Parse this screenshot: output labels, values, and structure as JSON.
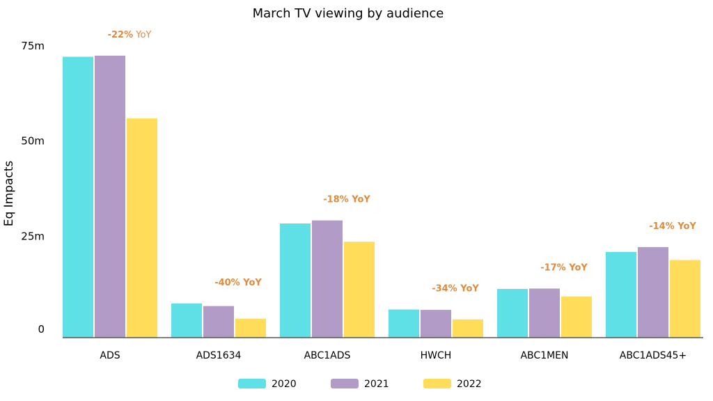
{
  "chart_data": {
    "type": "bar",
    "title": "March TV viewing by audience",
    "xlabel": "",
    "ylabel": "Eq Impacts",
    "ylim": [
      0,
      75
    ],
    "y_ticks": [
      {
        "value": 0,
        "label": "0"
      },
      {
        "value": 25,
        "label": "25m"
      },
      {
        "value": 50,
        "label": "50m"
      },
      {
        "value": 75,
        "label": "75m"
      }
    ],
    "grid": false,
    "legend_position": "bottom",
    "categories": [
      "ADS",
      "ADS1634",
      "ABC1ADS",
      "HWCH",
      "ABC1MEN",
      "ABC1ADS45+"
    ],
    "series": [
      {
        "name": "2020",
        "color": "#5ee0e6",
        "values": [
          73.8,
          9.0,
          30.0,
          7.4,
          12.8,
          22.5
        ]
      },
      {
        "name": "2021",
        "color": "#b29bc6",
        "values": [
          74.1,
          8.3,
          30.8,
          7.3,
          12.9,
          23.8
        ]
      },
      {
        "name": "2022",
        "color": "#ffdc5a",
        "values": [
          57.6,
          5.0,
          25.2,
          4.8,
          10.8,
          20.4
        ]
      }
    ],
    "annotations": [
      {
        "category": "ADS",
        "bold": "-22%",
        "rest": " YoY"
      },
      {
        "category": "ADS1634",
        "bold": "-40% YoY",
        "rest": ""
      },
      {
        "category": "ABC1ADS",
        "bold": "-18% YoY",
        "rest": ""
      },
      {
        "category": "HWCH",
        "bold": "-34% YoY",
        "rest": ""
      },
      {
        "category": "ABC1MEN",
        "bold": "-17% YoY",
        "rest": ""
      },
      {
        "category": "ABC1ADS45+",
        "bold": "-14% YoY",
        "rest": ""
      }
    ],
    "annotation_color": "#e08a3c",
    "axis_color": "#555555"
  }
}
